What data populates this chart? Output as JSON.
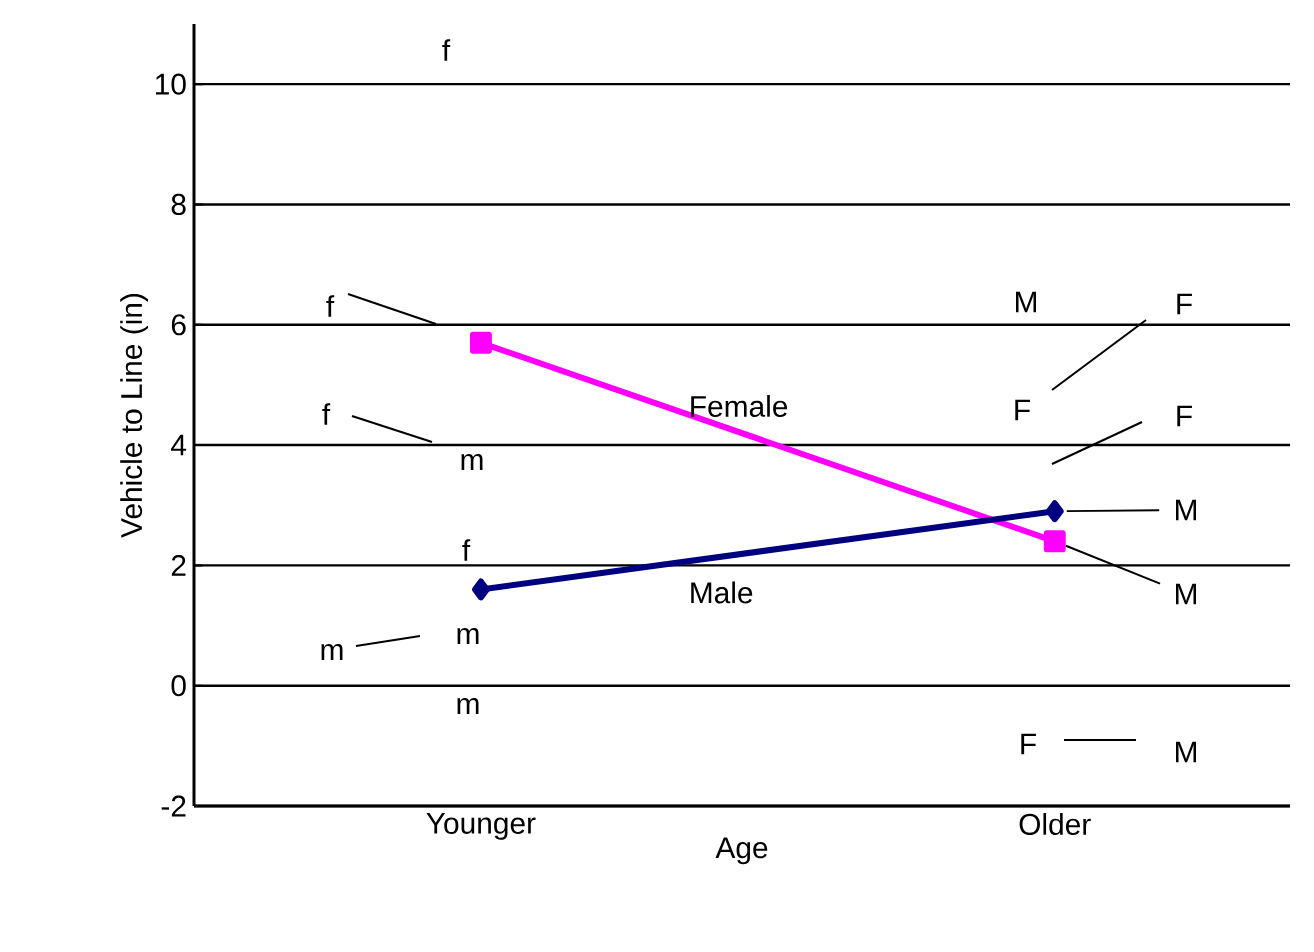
{
  "chart_data": {
    "type": "line",
    "xlabel": "Age",
    "ylabel": "Vehicle to Line (in)",
    "categories": [
      "Younger",
      "Older"
    ],
    "series": [
      {
        "name": "Female",
        "color": "#ff00ff",
        "marker": "square",
        "values": [
          5.7,
          2.4
        ]
      },
      {
        "name": "Male",
        "color": "#000080",
        "marker": "diamond",
        "values": [
          1.6,
          2.9
        ]
      }
    ],
    "ylim": [
      -2,
      11
    ],
    "yticks": [
      -2,
      0,
      2,
      4,
      6,
      8,
      10
    ],
    "grid": "y",
    "legend": false,
    "annotations": [
      "f",
      "f",
      "f",
      "m",
      "f",
      "m",
      "m",
      "m",
      "M",
      "F",
      "F",
      "F",
      {
        "text": "M",
        "x": "Older",
        "y": 2.9
      },
      {
        "text": "M",
        "x": "Older",
        "y": 2.4
      },
      "F",
      "M"
    ]
  }
}
